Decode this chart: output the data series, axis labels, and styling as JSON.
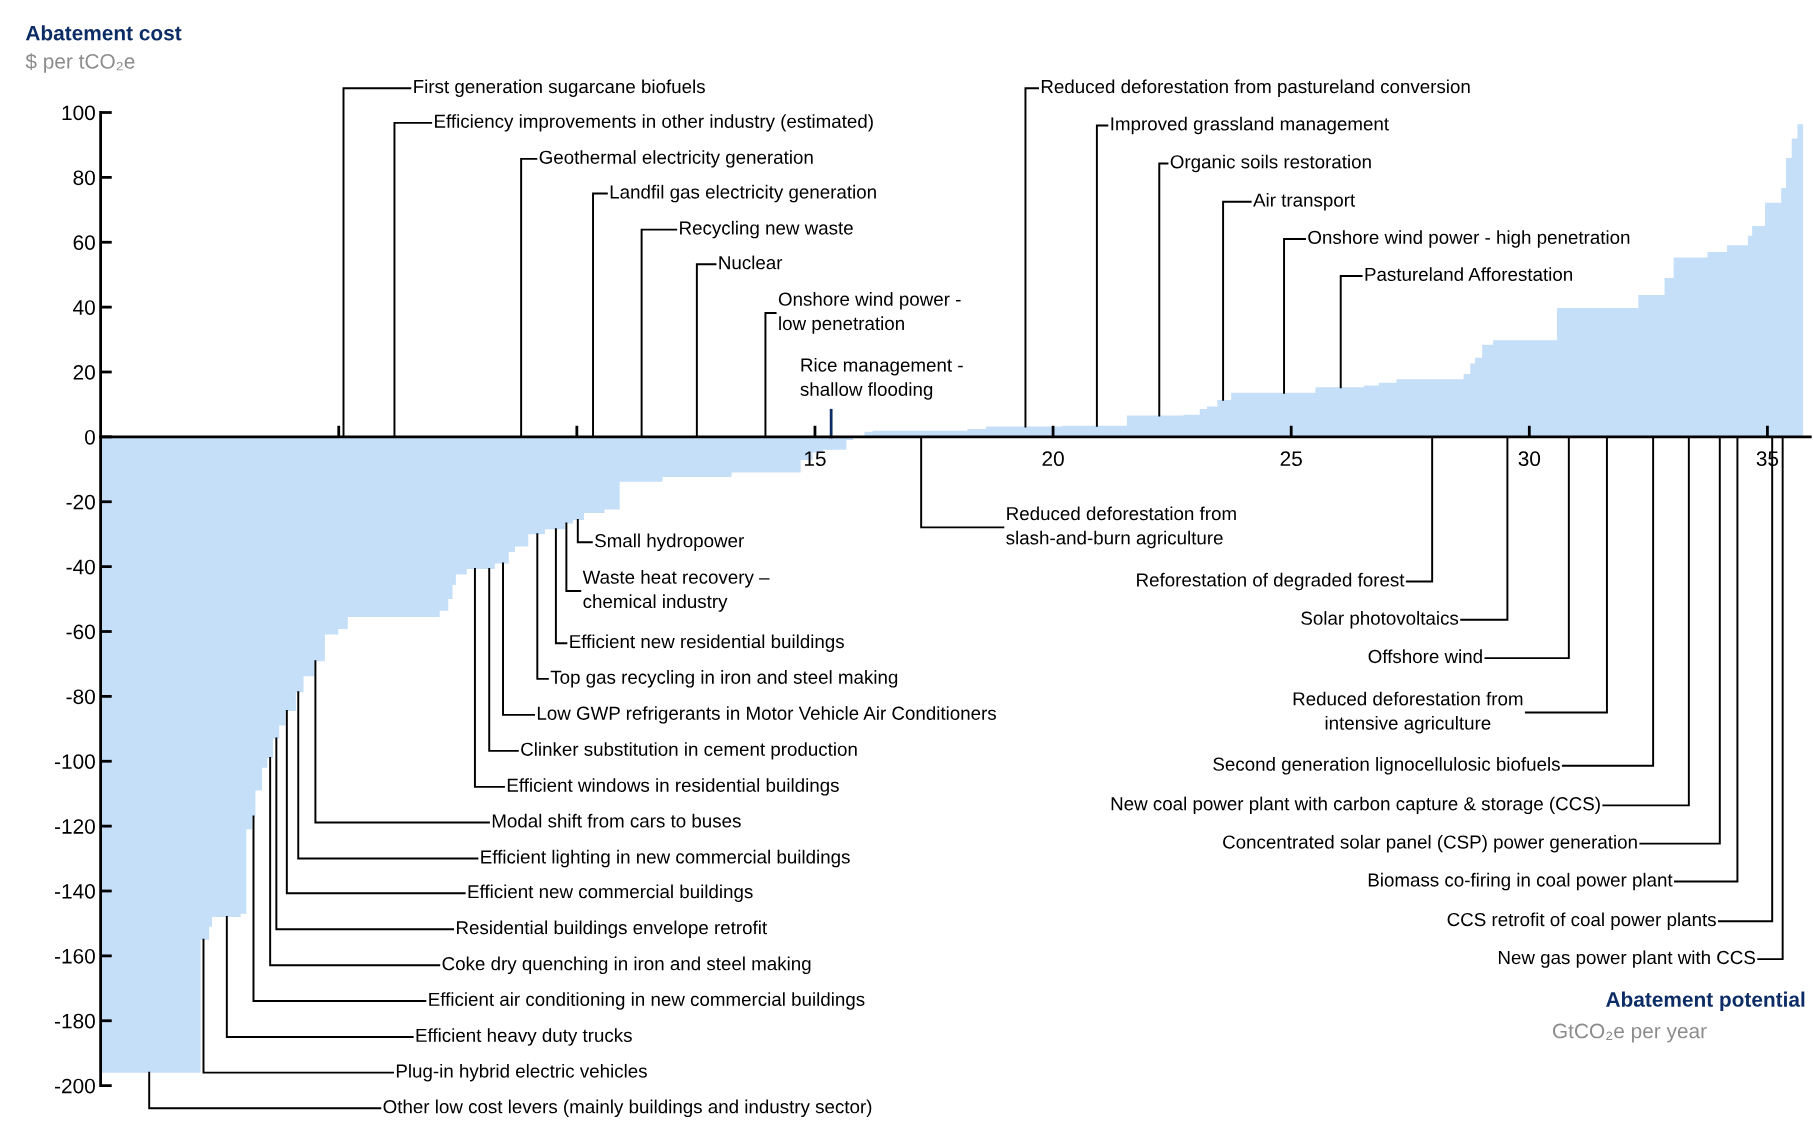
{
  "chart_data": {
    "type": "area",
    "xlabel": "Abatement potential\nGtCO₂e per year",
    "ylabel": "Abatement cost\n$ per tCO₂e",
    "color": "#c6dff8",
    "x": [
      0,
      2.1,
      2.1,
      2.28,
      2.28,
      2.34,
      2.34,
      2.94,
      2.94,
      3.06,
      3.06,
      3.18,
      3.18,
      3.25,
      3.25,
      3.39,
      3.39,
      3.5,
      3.5,
      3.62,
      3.62,
      3.75,
      3.75,
      3.88,
      3.88,
      4.1,
      4.1,
      4.26,
      4.26,
      4.49,
      4.49,
      4.71,
      4.71,
      4.99,
      4.99,
      5.19,
      5.19,
      7.12,
      7.12,
      7.3,
      7.3,
      7.39,
      7.39,
      7.46,
      7.46,
      7.69,
      7.69,
      8.28,
      8.28,
      8.57,
      8.57,
      8.7,
      8.7,
      8.98,
      8.98,
      9.33,
      9.33,
      9.75,
      9.75,
      9.92,
      9.92,
      10.15,
      10.15,
      10.58,
      10.58,
      10.9,
      10.9,
      11.8,
      11.8,
      13.25,
      13.25,
      14.7,
      14.7,
      14.95,
      14.95,
      15.17,
      15.17,
      15.66,
      15.66,
      15.8,
      15.8,
      16.04,
      16.04,
      16.21,
      16.21,
      18.2,
      18.2,
      18.59,
      18.59,
      20.19,
      20.19,
      21.55,
      21.55,
      22.74,
      22.74,
      23.08,
      23.08,
      23.23,
      23.23,
      23.45,
      23.45,
      23.74,
      23.74,
      25.51,
      25.51,
      26.53,
      26.53,
      26.84,
      26.84,
      27.21,
      27.21,
      28.62,
      28.62,
      28.76,
      28.76,
      28.86,
      28.86,
      29.01,
      29.01,
      29.24,
      29.24,
      30.58,
      30.58,
      32.29,
      32.29,
      32.84,
      32.84,
      33.03,
      33.03,
      33.74,
      33.74,
      34.15,
      34.15,
      34.59,
      34.59,
      34.68,
      34.68,
      34.95,
      34.95,
      35.29,
      35.29,
      35.39,
      35.39,
      35.51,
      35.51,
      35.63,
      35.63,
      35.75
    ],
    "values": [
      -196,
      -196,
      -155,
      -155,
      -151,
      -151,
      -148,
      -148,
      -147,
      -147,
      -121,
      -121,
      -117,
      -117,
      -109,
      -109,
      -102,
      -102,
      -99,
      -99,
      -93,
      -93,
      -89,
      -89,
      -84.5,
      -84.5,
      -78.7,
      -78.7,
      -73.8,
      -73.8,
      -69.2,
      -69.2,
      -60.9,
      -60.9,
      -59.2,
      -59.2,
      -55.5,
      -55.5,
      -53.6,
      -53.6,
      -50,
      -50,
      -45.7,
      -45.7,
      -42.4,
      -42.4,
      -40.7,
      -40.7,
      -39,
      -39,
      -35.5,
      -35.5,
      -33.8,
      -33.8,
      -30,
      -30,
      -28.5,
      -28.5,
      -26.7,
      -26.7,
      -25.6,
      -25.6,
      -23.5,
      -23.5,
      -22.4,
      -22.4,
      -13.8,
      -13.8,
      -12.4,
      -12.4,
      -11,
      -11,
      -7.1,
      -7.1,
      -4.8,
      -4.8,
      -4,
      -4,
      -1,
      -1,
      0,
      0,
      1.6,
      1.6,
      1.9,
      1.9,
      2.4,
      2.4,
      3.2,
      3.2,
      3.4,
      3.4,
      6.6,
      6.6,
      6.8,
      6.8,
      8.6,
      8.6,
      9.4,
      9.4,
      11.4,
      11.4,
      13.6,
      13.6,
      15.3,
      15.3,
      15.8,
      15.8,
      16.7,
      16.7,
      17.8,
      17.8,
      19.4,
      19.4,
      22.6,
      22.6,
      24.4,
      24.4,
      28.4,
      28.4,
      29.8,
      29.8,
      39.7,
      39.7,
      43.7,
      43.7,
      49,
      49,
      55.3,
      55.3,
      57,
      57,
      59.1,
      59.1,
      62,
      62,
      65,
      65,
      72.2,
      72.2,
      76.7,
      76.7,
      86,
      86,
      92,
      92,
      96.4,
      96.4
    ],
    "xlim": [
      0,
      35.9
    ],
    "ylim": [
      -200,
      100
    ],
    "xticks": [
      {
        "value": 5,
        "label": null
      },
      {
        "value": 10,
        "label": null
      },
      15,
      20,
      25,
      30,
      35
    ],
    "yticks": [
      -200,
      -180,
      -160,
      -140,
      -120,
      -100,
      -80,
      -60,
      -40,
      -20,
      0,
      20,
      40,
      60,
      80,
      100
    ],
    "annotations": [
      {
        "text": "First generation sugarcane biofuels",
        "x": 5.1,
        "y": 0
      },
      {
        "text": "Efficiency improvements in other industry (estimated)",
        "x": 6.17,
        "y": 0
      },
      {
        "text": "Geothermal electricity generation",
        "x": 8.83,
        "y": 0
      },
      {
        "text": "Landfil gas electricity generation",
        "x": 10.34,
        "y": 0
      },
      {
        "text": "Recycling new waste",
        "x": 11.36,
        "y": 0
      },
      {
        "text": "Nuclear",
        "x": 12.52,
        "y": 0
      },
      {
        "text": "Onshore wind power -\nlow penetration",
        "x": 13.96,
        "y": 0
      },
      {
        "text": "Rice management -\nshallow flooding",
        "x": 15.34,
        "y": 0
      },
      {
        "text": "Reduced deforestation from pastureland conversion",
        "x": 19.42,
        "y": 3.2
      },
      {
        "text": "Improved grassland management",
        "x": 20.92,
        "y": 3.4
      },
      {
        "text": "Organic soils restoration",
        "x": 22.23,
        "y": 6.6
      },
      {
        "text": "Air transport",
        "x": 23.57,
        "y": 11.4
      },
      {
        "text": "Onshore wind power - high penetration",
        "x": 24.85,
        "y": 13.6
      },
      {
        "text": "Pastureland Afforestation",
        "x": 26.04,
        "y": 15.3
      },
      {
        "text": "Small hydropower",
        "x": 10.02,
        "y": -25.6
      },
      {
        "text": "Waste heat recovery –\nchemical industry",
        "x": 9.78,
        "y": -26.7
      },
      {
        "text": "Efficient new residential buildings",
        "x": 9.56,
        "y": -28.5
      },
      {
        "text": "Top gas recycling in iron and steel making",
        "x": 9.17,
        "y": -30
      },
      {
        "text": "Low GWP refrigerants in Motor Vehicle Air Conditioners",
        "x": 8.45,
        "y": -39
      },
      {
        "text": "Clinker substitution in cement production",
        "x": 8.16,
        "y": -40.7
      },
      {
        "text": "Efficient windows in residential buildings",
        "x": 7.86,
        "y": -40.7
      },
      {
        "text": "Modal shift from cars to buses",
        "x": 4.51,
        "y": -69.2
      },
      {
        "text": "Efficient lighting in new commercial buildings",
        "x": 4.15,
        "y": -78.7
      },
      {
        "text": "Efficient new commercial buildings",
        "x": 3.91,
        "y": -84.5
      },
      {
        "text": "Residential buildings envelope retrofit",
        "x": 3.69,
        "y": -93
      },
      {
        "text": "Coke dry quenching in iron and steel making",
        "x": 3.56,
        "y": -99
      },
      {
        "text": "Efficient air conditioning in new commercial buildings",
        "x": 3.21,
        "y": -117
      },
      {
        "text": "Efficient heavy duty trucks",
        "x": 2.65,
        "y": -148
      },
      {
        "text": "Plug-in hybrid electric vehicles",
        "x": 2.16,
        "y": -155
      },
      {
        "text": "Other low cost levers (mainly buildings and industry sector)",
        "x": 1.02,
        "y": -196
      },
      {
        "text": "Reduced deforestation from\nslash-and-burn agriculture",
        "x": 17.23,
        "y": 0
      },
      {
        "text": "Reforestation of degraded forest",
        "x": 27.96,
        "y": 0
      },
      {
        "text": "Solar photovoltaics",
        "x": 29.54,
        "y": 0
      },
      {
        "text": "Offshore wind",
        "x": 30.83,
        "y": 0
      },
      {
        "text": "Reduced deforestation from\nintensive agriculture",
        "x": 31.63,
        "y": 0
      },
      {
        "text": "Second generation lignocellulosic biofuels",
        "x": 32.6,
        "y": 0
      },
      {
        "text": "New coal power plant with carbon capture & storage (CCS)",
        "x": 33.35,
        "y": 0
      },
      {
        "text": "Concentrated solar panel (CSP) power generation",
        "x": 34.0,
        "y": 0
      },
      {
        "text": "Biomass co-firing in coal power plant",
        "x": 34.37,
        "y": 0
      },
      {
        "text": "CCS retrofit of coal power plants",
        "x": 35.1,
        "y": 0
      },
      {
        "text": "New gas power plant with CCS",
        "x": 35.32,
        "y": 0
      }
    ]
  }
}
